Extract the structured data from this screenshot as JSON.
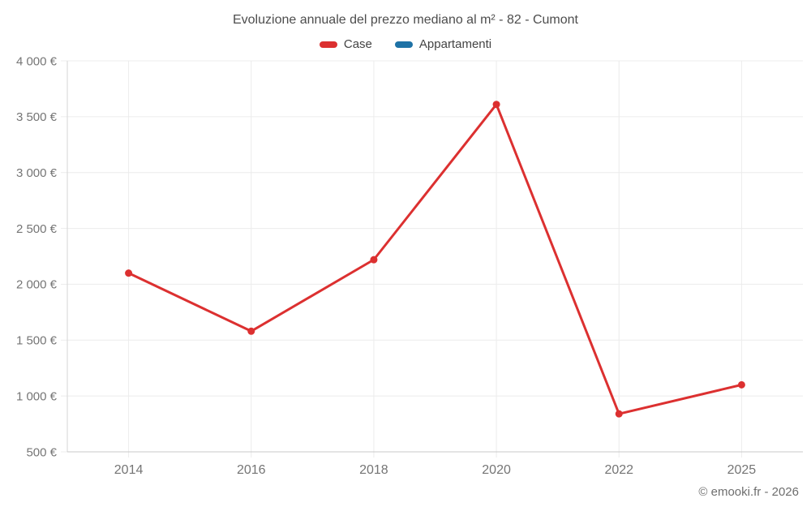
{
  "header": {
    "title": "Evoluzione annuale del prezzo mediano al m² - 82 - Cumont"
  },
  "legend": {
    "items": [
      {
        "label": "Case",
        "color": "#dc3030"
      },
      {
        "label": "Appartamenti",
        "color": "#1e72a6"
      }
    ]
  },
  "footer": {
    "copyright": "© emooki.fr - 2026"
  },
  "colors": {
    "title_text": "#4d4d4d",
    "tick_text": "#757575",
    "gridline": "#ececec",
    "axis_line_left": "#d6d6d6",
    "axis_line_bottom": "#c8c8c8",
    "background": "#ffffff"
  },
  "chart_data": {
    "type": "line",
    "title": "Evoluzione annuale del prezzo mediano al m² - 82 - Cumont",
    "xlabel": "",
    "ylabel": "",
    "categories": [
      "2014",
      "2016",
      "2018",
      "2020",
      "2022",
      "2025"
    ],
    "series": [
      {
        "name": "Case",
        "color": "#dc3030",
        "values": [
          2100,
          1580,
          2220,
          3610,
          840,
          1100
        ]
      },
      {
        "name": "Appartamenti",
        "color": "#1e72a6",
        "values": []
      }
    ],
    "ylim": [
      500,
      4000
    ],
    "y_step": 500,
    "y_tick_labels": [
      "500 €",
      "1 000 €",
      "1 500 €",
      "2 000 €",
      "2 500 €",
      "3 000 €",
      "3 500 €",
      "4 000 €"
    ],
    "x_tick_labels": [
      "2014",
      "2016",
      "2018",
      "2020",
      "2022",
      "2025"
    ],
    "grid": true,
    "legend_position": "top",
    "marker_radius": 4.5,
    "line_width": 3
  }
}
